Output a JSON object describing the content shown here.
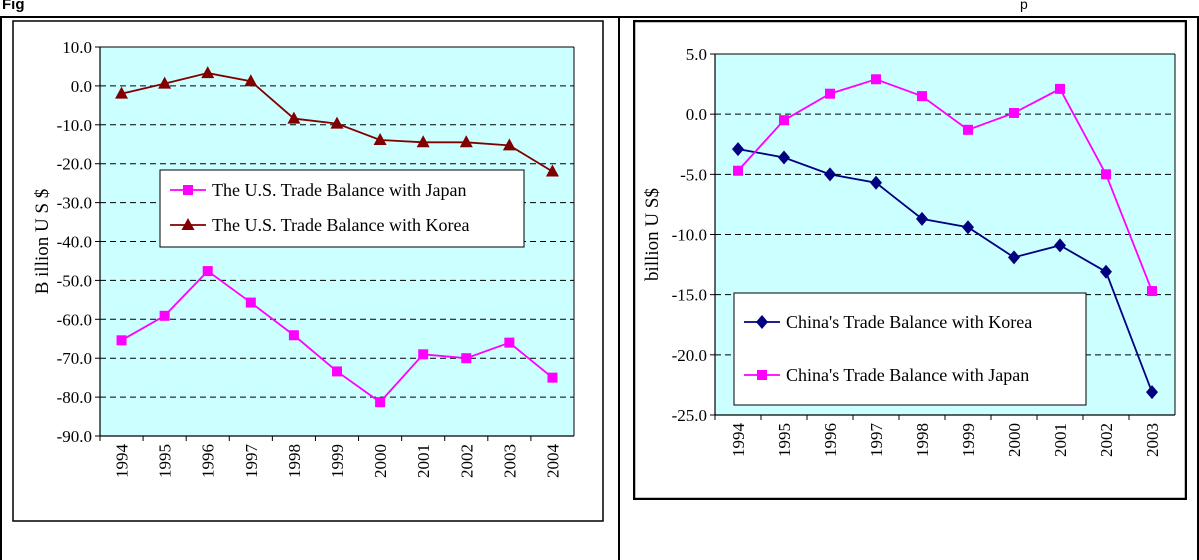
{
  "header": {
    "title": "Fig",
    "right_fragment": "p"
  },
  "chart_data": [
    {
      "type": "line",
      "title": "",
      "xlabel": "",
      "ylabel": "B illion U S $",
      "categories": [
        "1994",
        "1995",
        "1996",
        "1997",
        "1998",
        "1999",
        "2000",
        "2001",
        "2002",
        "2003",
        "2004"
      ],
      "ylim": [
        -90,
        10
      ],
      "yticks": [
        "10.0",
        "0.0",
        "-10.0",
        "-20.0",
        "-30.0",
        "-40.0",
        "-50.0",
        "-60.0",
        "-70.0",
        "-80.0",
        "-90.0"
      ],
      "grid": "horizontal dashed",
      "legend_position": "center",
      "background": "#ccffff",
      "series": [
        {
          "name": "The U.S. Trade Balance with Japan",
          "color": "#ff00ff",
          "marker": "square",
          "values": [
            -65.4,
            -59.1,
            -47.6,
            -55.7,
            -64.1,
            -73.4,
            -81.3,
            -69.0,
            -70.0,
            -66.0,
            -75.0
          ]
        },
        {
          "name": "The U.S. Trade Balance with Korea",
          "color": "#800000",
          "marker": "triangle",
          "values": [
            -2.0,
            0.6,
            3.3,
            1.2,
            -8.4,
            -9.7,
            -13.9,
            -14.5,
            -14.5,
            -15.3,
            -22.0
          ]
        }
      ]
    },
    {
      "type": "line",
      "title": "",
      "xlabel": "",
      "ylabel": "billion U S$",
      "categories": [
        "1994",
        "1995",
        "1996",
        "1997",
        "1998",
        "1999",
        "2000",
        "2001",
        "2002",
        "2003"
      ],
      "ylim": [
        -25,
        5
      ],
      "yticks": [
        "5.0",
        "0.0",
        "-5.0",
        "-10.0",
        "-15.0",
        "-20.0",
        "-25.0"
      ],
      "grid": "horizontal dashed",
      "legend_position": "bottom-left",
      "background": "#ccffff",
      "series": [
        {
          "name": "China's Trade Balance with Korea",
          "color": "#000080",
          "marker": "diamond",
          "values": [
            -2.9,
            -3.6,
            -5.0,
            -5.7,
            -8.7,
            -9.4,
            -11.9,
            -10.9,
            -13.1,
            -23.1
          ]
        },
        {
          "name": "China's Trade Balance with Japan",
          "color": "#ff00ff",
          "marker": "square",
          "values": [
            -4.7,
            -0.5,
            1.7,
            2.9,
            1.5,
            -1.3,
            0.1,
            2.1,
            -5.0,
            -14.7
          ]
        }
      ]
    }
  ]
}
